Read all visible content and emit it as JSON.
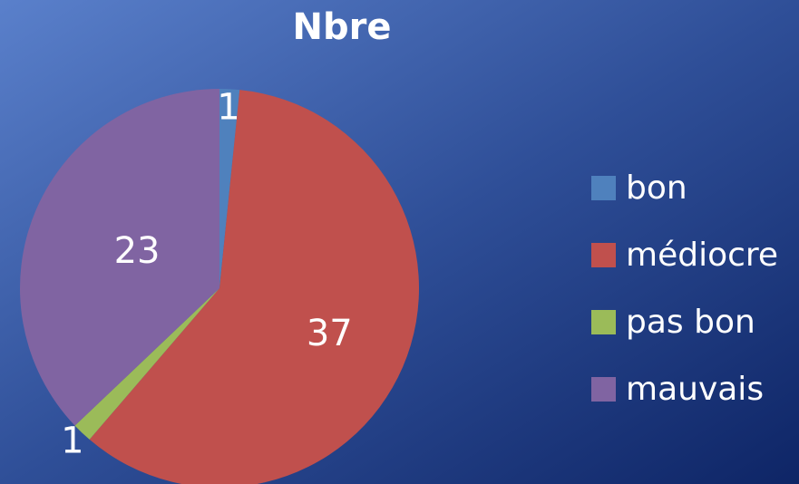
{
  "chart_data": {
    "type": "pie",
    "title": "Nbre",
    "categories": [
      "bon",
      "médiocre",
      "pas bon",
      "mauvais"
    ],
    "values": [
      1,
      37,
      1,
      23
    ],
    "colors": [
      "#4f81bd",
      "#c0504d",
      "#9bbb59",
      "#8064a2"
    ],
    "legend": "right"
  }
}
